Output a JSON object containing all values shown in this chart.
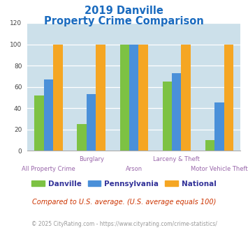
{
  "title_line1": "2019 Danville",
  "title_line2": "Property Crime Comparison",
  "title_color": "#1a6bbf",
  "groups": [
    "All Property Crime",
    "Burglary",
    "Arson",
    "Larceny & Theft",
    "Motor Vehicle Theft"
  ],
  "group_labels_row1": [
    "",
    "Burglary",
    "",
    "Larceny & Theft",
    ""
  ],
  "group_labels_row2": [
    "All Property Crime",
    "",
    "Arson",
    "",
    "Motor Vehicle Theft"
  ],
  "series": {
    "Danville": [
      52,
      25,
      100,
      65,
      10
    ],
    "Pennsylvania": [
      67,
      53,
      100,
      73,
      45
    ],
    "National": [
      100,
      100,
      100,
      100,
      100
    ]
  },
  "colors": {
    "Danville": "#7dc243",
    "Pennsylvania": "#4a90d9",
    "National": "#f5a623"
  },
  "ylim": [
    0,
    120
  ],
  "yticks": [
    0,
    20,
    40,
    60,
    80,
    100,
    120
  ],
  "background_color": "#cce0ea",
  "footer_text": "Compared to U.S. average. (U.S. average equals 100)",
  "footer_color": "#cc3300",
  "copyright_text": "© 2025 CityRating.com - https://www.cityrating.com/crime-statistics/",
  "copyright_color": "#999999",
  "bar_width": 0.22,
  "title_fontsize": 10.5,
  "label_fontsize": 6.0,
  "legend_fontsize": 7.5,
  "footer_fontsize": 7.0,
  "copyright_fontsize": 5.5,
  "label_color": "#9966aa"
}
